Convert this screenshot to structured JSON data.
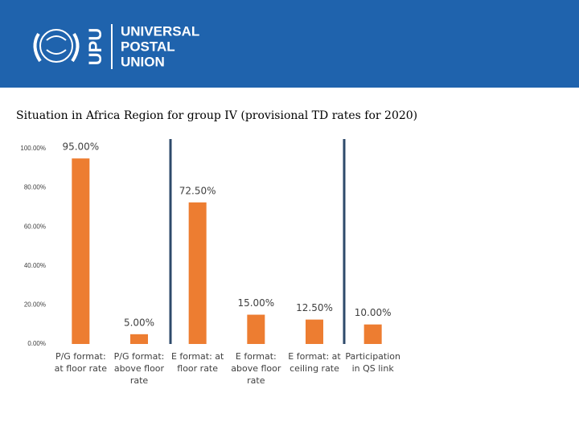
{
  "header": {
    "acronym": "UPU",
    "name": [
      "UNIVERSAL",
      "POSTAL",
      "UNION"
    ]
  },
  "chart_data": {
    "type": "bar",
    "title": "Situation in Africa Region for group IV (provisional TD rates for 2020)",
    "categories": [
      "P/G format: at floor rate",
      "P/G format: above floor rate",
      "E format: at floor rate",
      "E format: above floor rate",
      "E format: at ceiling rate",
      "Participation in QS link"
    ],
    "values": [
      95,
      5,
      72.5,
      15,
      12.5,
      10
    ],
    "value_labels": [
      "95.00%",
      "5.00%",
      "72.50%",
      "15.00%",
      "12.50%",
      "10.00%"
    ],
    "color": "#ed7d31",
    "ylim": [
      0,
      100
    ],
    "yticks": [
      {
        "value": 0,
        "label": "0.00%"
      },
      {
        "value": 20,
        "label": "20.00%"
      },
      {
        "value": 40,
        "label": "40.00%"
      },
      {
        "value": 60,
        "label": "60.00%"
      },
      {
        "value": 80,
        "label": "80.00%"
      },
      {
        "value": 100,
        "label": "100.00%"
      }
    ],
    "grid": false
  }
}
